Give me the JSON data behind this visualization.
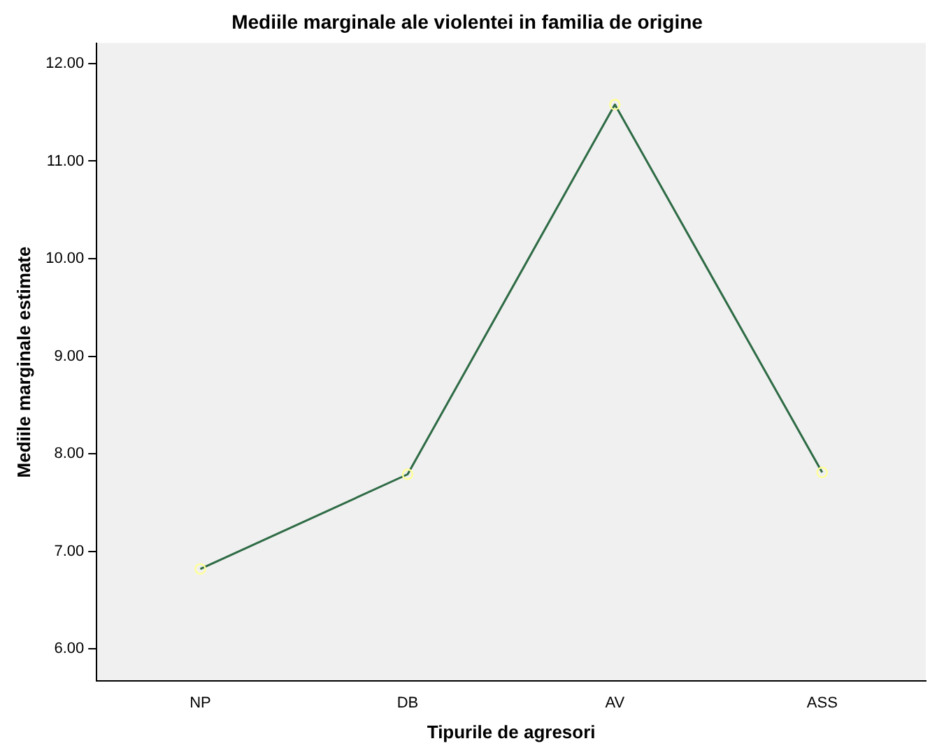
{
  "chart_data": {
    "type": "line",
    "title": "Mediile marginale ale violentei in familia de origine",
    "xlabel": "Tipurile de agresori",
    "ylabel": "Mediile marginale estimate",
    "categories": [
      "NP",
      "DB",
      "AV",
      "ASS"
    ],
    "series": [
      {
        "color": "#2e6b45",
        "values": [
          6.82,
          7.79,
          11.58,
          7.81
        ]
      }
    ],
    "ylim": [
      5.67,
      12.21
    ],
    "yticks": [
      {
        "value": 6,
        "label": "6.00"
      },
      {
        "value": 7,
        "label": "7.00"
      },
      {
        "value": 8,
        "label": "8.00"
      },
      {
        "value": 9,
        "label": "9.00"
      },
      {
        "value": 10,
        "label": "10.00"
      },
      {
        "value": 11,
        "label": "11.00"
      },
      {
        "value": 12,
        "label": "12.00"
      }
    ],
    "grid": false,
    "legend": false,
    "marker": "circle",
    "line_style": "solid"
  }
}
